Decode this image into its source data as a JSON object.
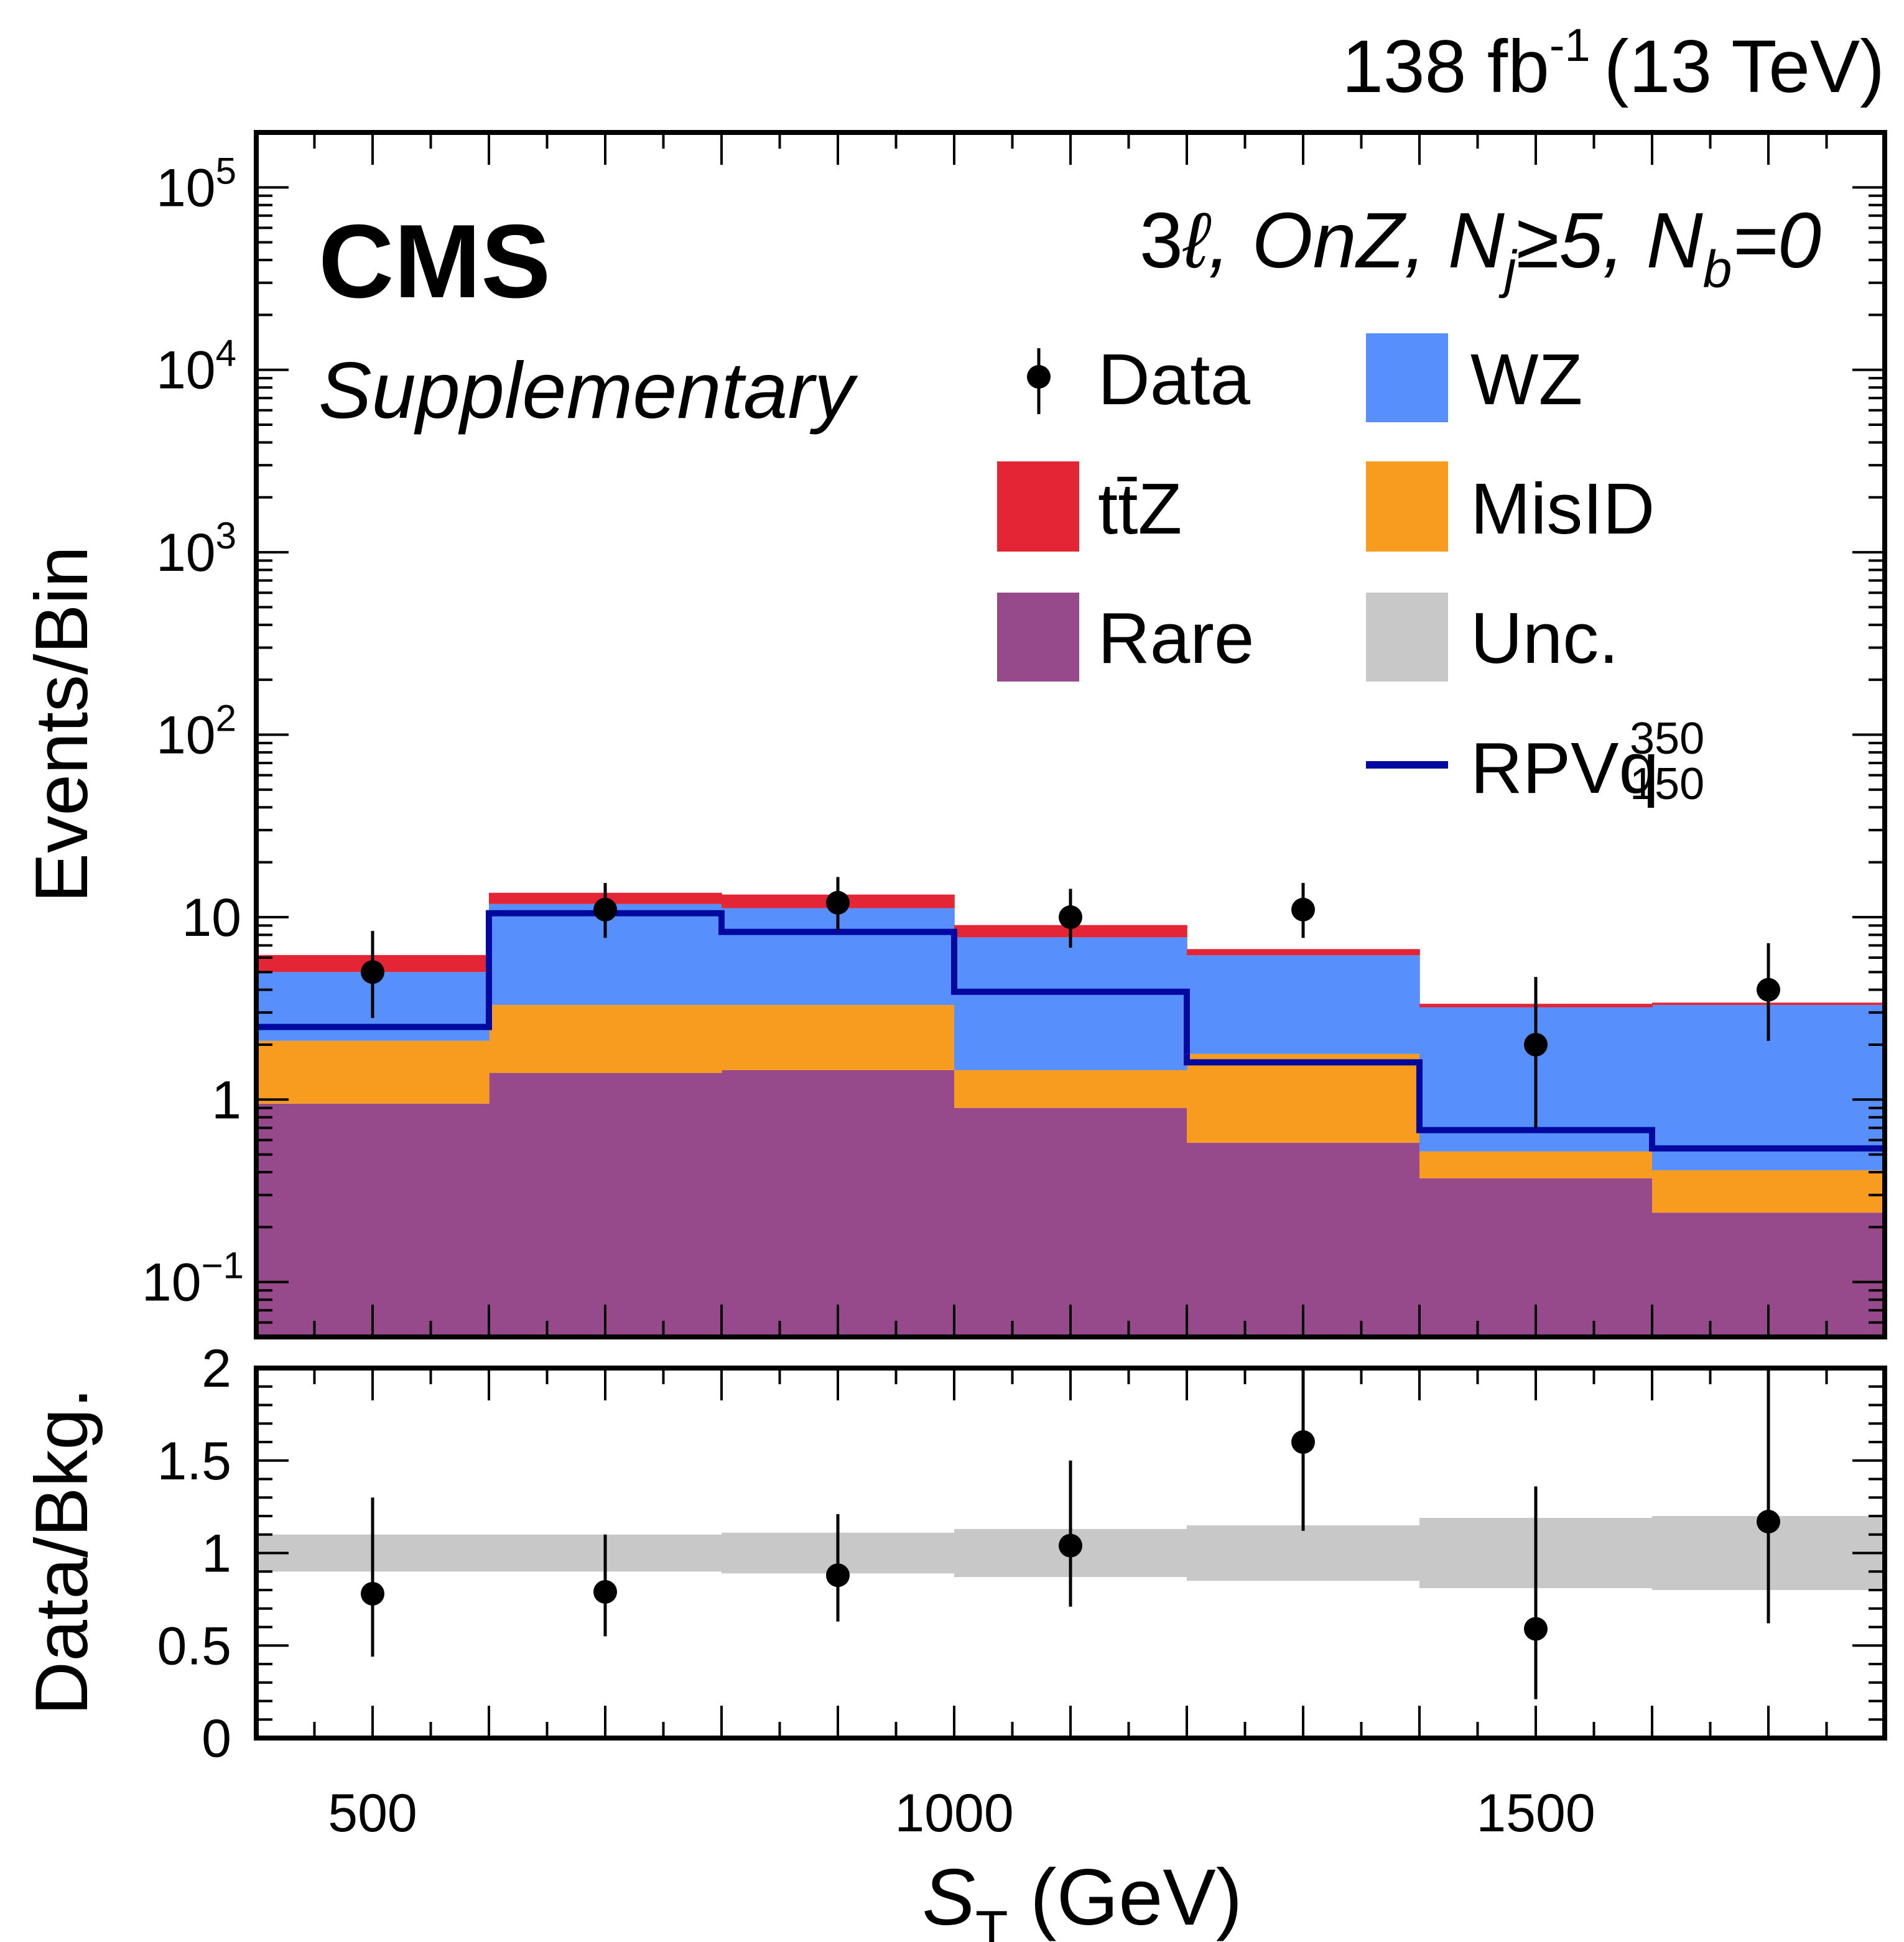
{
  "header": {
    "lumi_value": "138 fb",
    "lumi_exp": "-1",
    "energy": "(13 TeV)"
  },
  "labels": {
    "experiment": "CMS",
    "supplementary": "Supplementary",
    "region_3": "3",
    "region_ell": "ℓ",
    "region_onz": ", OnZ, N",
    "region_j": "j",
    "region_ge5": "≥5, N",
    "region_b": "b",
    "region_eq0": "=0"
  },
  "chart_data": [
    {
      "type": "bar",
      "stacked": true,
      "log_y": true,
      "ylabel": "Events/Bin",
      "ylim": [
        0.05,
        200000
      ],
      "xlim": [
        400,
        1800
      ],
      "bin_edges": [
        400,
        600,
        800,
        1000,
        1200,
        1400,
        1600,
        1800
      ],
      "y_ticks": [
        {
          "v": 0.1,
          "base": "10",
          "exp": "−1"
        },
        {
          "v": 1,
          "base": "1",
          "exp": ""
        },
        {
          "v": 10,
          "base": "10",
          "exp": ""
        },
        {
          "v": 100,
          "base": "10",
          "exp": "2"
        },
        {
          "v": 1000,
          "base": "10",
          "exp": "3"
        },
        {
          "v": 10000,
          "base": "10",
          "exp": "4"
        },
        {
          "v": 100000,
          "base": "10",
          "exp": "5"
        }
      ],
      "series": [
        {
          "name": "Rare",
          "color": "#964a8b",
          "values": [
            0.95,
            1.4,
            1.45,
            0.9,
            0.58,
            0.37,
            0.24
          ]
        },
        {
          "name": "MisID",
          "color": "#f89c20",
          "values": [
            1.15,
            1.9,
            1.85,
            0.55,
            1.2,
            0.15,
            0.17
          ]
        },
        {
          "name": "WZ",
          "color": "#5790fc",
          "values": [
            2.9,
            8.5,
            7.9,
            6.3,
            4.4,
            2.68,
            2.89
          ]
        },
        {
          "name": "tt̄Z",
          "color": "#e42536",
          "values": [
            1.2,
            1.8,
            2.1,
            1.3,
            0.5,
            0.15,
            0.1
          ]
        }
      ],
      "signal": {
        "name": "RPVq",
        "sup": "350",
        "sub": "150",
        "color": "#00099f",
        "values": [
          2.5,
          10.5,
          8.3,
          3.9,
          1.6,
          0.68,
          0.54
        ]
      },
      "data": {
        "name": "Data",
        "x": [
          500,
          700,
          900,
          1100,
          1300,
          1500,
          1700
        ],
        "y": [
          5,
          11,
          12,
          10,
          11,
          2,
          4
        ],
        "yerr_low": [
          2.2,
          3.3,
          3.5,
          3.2,
          3.3,
          1.3,
          1.9
        ],
        "yerr_high": [
          3.4,
          4.4,
          4.6,
          4.3,
          4.4,
          2.7,
          3.2
        ]
      },
      "uncertainty": {
        "name": "Unc.",
        "color": "#c8c8c8"
      }
    },
    {
      "type": "scatter",
      "ylabel": "Data/Bkg.",
      "xlabel_main": "S",
      "xlabel_sub": "T",
      "xlabel_unit": " (GeV)",
      "ylim": [
        0,
        2
      ],
      "xlim": [
        400,
        1800
      ],
      "y_ticks": [
        "0",
        "0.5",
        "1",
        "1.5",
        "2"
      ],
      "x_ticks": [
        "500",
        "1000",
        "1500"
      ],
      "x": [
        500,
        700,
        900,
        1100,
        1300,
        1500,
        1700
      ],
      "y": [
        0.78,
        0.79,
        0.88,
        1.04,
        1.6,
        0.59,
        1.17
      ],
      "yerr_low": [
        0.34,
        0.24,
        0.25,
        0.33,
        0.48,
        0.38,
        0.55
      ],
      "yerr_high": [
        0.52,
        0.31,
        0.33,
        0.46,
        0.64,
        0.77,
        0.95
      ],
      "unc_band": [
        {
          "lo": 0.9,
          "hi": 1.1
        },
        {
          "lo": 0.9,
          "hi": 1.1
        },
        {
          "lo": 0.89,
          "hi": 1.11
        },
        {
          "lo": 0.87,
          "hi": 1.13
        },
        {
          "lo": 0.85,
          "hi": 1.15
        },
        {
          "lo": 0.81,
          "hi": 1.19
        },
        {
          "lo": 0.8,
          "hi": 1.2
        }
      ]
    }
  ]
}
